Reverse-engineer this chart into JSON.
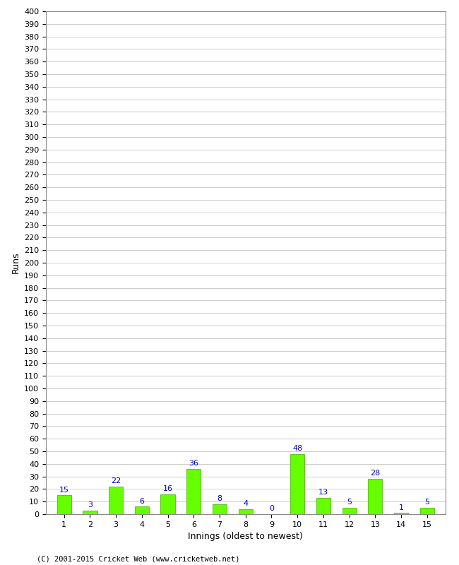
{
  "innings": [
    1,
    2,
    3,
    4,
    5,
    6,
    7,
    8,
    9,
    10,
    11,
    12,
    13,
    14,
    15
  ],
  "runs": [
    15,
    3,
    22,
    6,
    16,
    36,
    8,
    4,
    0,
    48,
    13,
    5,
    28,
    1,
    5
  ],
  "bar_color": "#66ff00",
  "bar_edge_color": "#44aa00",
  "label_color": "#0000cc",
  "xlabel": "Innings (oldest to newest)",
  "ylabel": "Runs",
  "ylim_min": 0,
  "ylim_max": 400,
  "ytick_step": 10,
  "background_color": "#ffffff",
  "grid_color": "#cccccc",
  "footer": "(C) 2001-2015 Cricket Web (www.cricketweb.net)"
}
